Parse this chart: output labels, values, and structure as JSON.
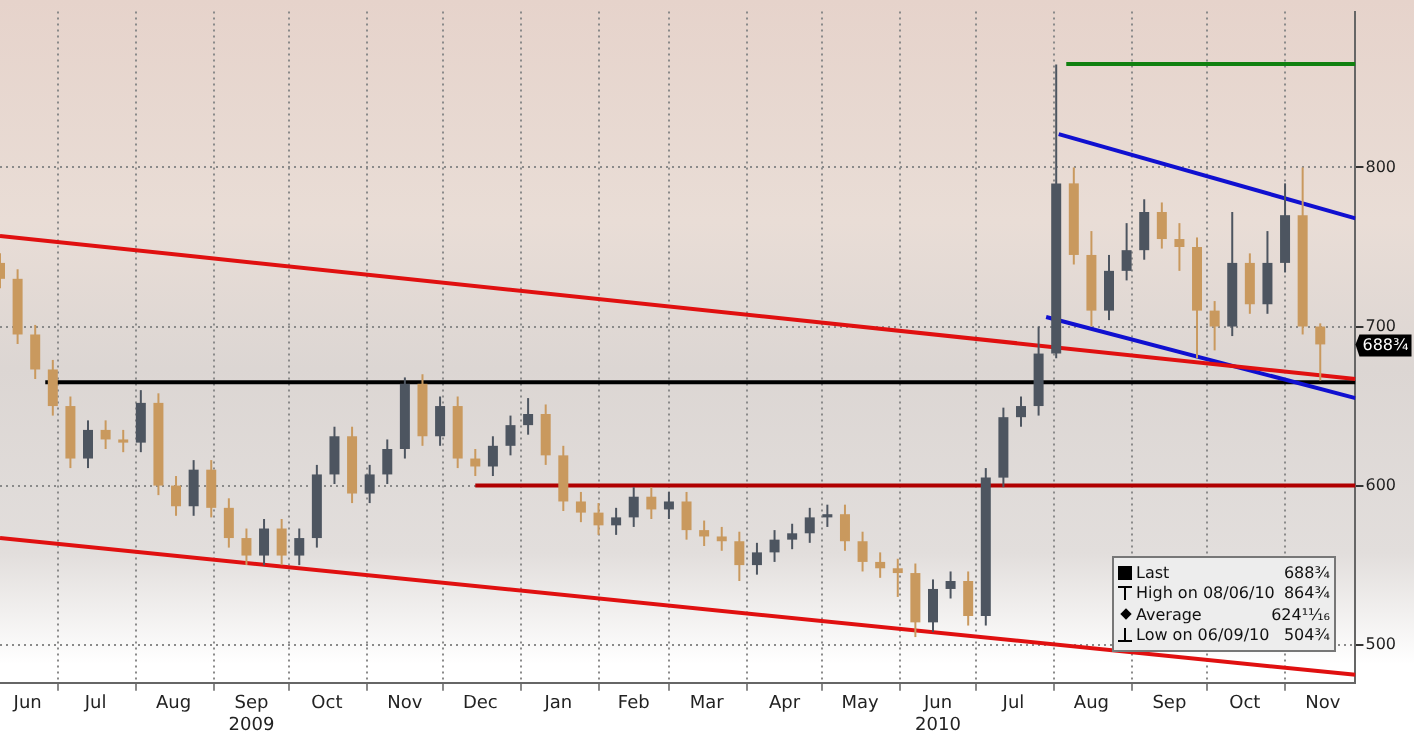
{
  "chart_data": {
    "type": "candlestick",
    "x": [
      "2009-06-08",
      "2009-06-15",
      "2009-06-22",
      "2009-06-29",
      "2009-07-06",
      "2009-07-13",
      "2009-07-20",
      "2009-07-27",
      "2009-08-03",
      "2009-08-10",
      "2009-08-17",
      "2009-08-24",
      "2009-08-31",
      "2009-09-07",
      "2009-09-14",
      "2009-09-21",
      "2009-09-28",
      "2009-10-05",
      "2009-10-12",
      "2009-10-19",
      "2009-10-26",
      "2009-11-02",
      "2009-11-09",
      "2009-11-16",
      "2009-11-23",
      "2009-11-30",
      "2009-12-07",
      "2009-12-14",
      "2009-12-21",
      "2009-12-28",
      "2010-01-04",
      "2010-01-11",
      "2010-01-18",
      "2010-01-25",
      "2010-02-01",
      "2010-02-08",
      "2010-02-15",
      "2010-02-22",
      "2010-03-01",
      "2010-03-08",
      "2010-03-15",
      "2010-03-22",
      "2010-03-29",
      "2010-04-05",
      "2010-04-12",
      "2010-04-19",
      "2010-04-26",
      "2010-05-03",
      "2010-05-10",
      "2010-05-17",
      "2010-05-24",
      "2010-05-31",
      "2010-06-07",
      "2010-06-14",
      "2010-06-21",
      "2010-06-28",
      "2010-07-05",
      "2010-07-12",
      "2010-07-19",
      "2010-07-26",
      "2010-08-02",
      "2010-08-09",
      "2010-08-16",
      "2010-08-23",
      "2010-08-30",
      "2010-09-06",
      "2010-09-13",
      "2010-09-20",
      "2010-09-27",
      "2010-10-04",
      "2010-10-11",
      "2010-10-18",
      "2010-10-25",
      "2010-11-01",
      "2010-11-08",
      "2010-11-15"
    ],
    "ohlc": [
      [
        740,
        746,
        724,
        730
      ],
      [
        730,
        736,
        689,
        695
      ],
      [
        695,
        701,
        667,
        673
      ],
      [
        673,
        679,
        644,
        650
      ],
      [
        650,
        656,
        611,
        617
      ],
      [
        617,
        641,
        611,
        635
      ],
      [
        635,
        641,
        623,
        629
      ],
      [
        629,
        635,
        621,
        627
      ],
      [
        627,
        660,
        621,
        652
      ],
      [
        652,
        658,
        594,
        600
      ],
      [
        600,
        606,
        581,
        587
      ],
      [
        587,
        616,
        581,
        610
      ],
      [
        610,
        616,
        580,
        586
      ],
      [
        586,
        592,
        561,
        567
      ],
      [
        567,
        573,
        550,
        556
      ],
      [
        556,
        579,
        550,
        573
      ],
      [
        573,
        579,
        550,
        556
      ],
      [
        556,
        573,
        550,
        567
      ],
      [
        567,
        613,
        561,
        607
      ],
      [
        607,
        637,
        601,
        631
      ],
      [
        631,
        637,
        589,
        595
      ],
      [
        595,
        613,
        589,
        607
      ],
      [
        607,
        629,
        601,
        623
      ],
      [
        623,
        668,
        617,
        664
      ],
      [
        664,
        670,
        625,
        631
      ],
      [
        631,
        656,
        625,
        650
      ],
      [
        650,
        656,
        611,
        617
      ],
      [
        617,
        623,
        606,
        612
      ],
      [
        612,
        631,
        606,
        625
      ],
      [
        625,
        644,
        619,
        638
      ],
      [
        638,
        655,
        632,
        645
      ],
      [
        645,
        651,
        613,
        619
      ],
      [
        619,
        625,
        584,
        590
      ],
      [
        590,
        596,
        577,
        583
      ],
      [
        583,
        589,
        569,
        575
      ],
      [
        575,
        586,
        569,
        580
      ],
      [
        580,
        599,
        574,
        593
      ],
      [
        593,
        599,
        579,
        585
      ],
      [
        585,
        596,
        579,
        590
      ],
      [
        590,
        596,
        566,
        572
      ],
      [
        572,
        578,
        562,
        568
      ],
      [
        568,
        574,
        559,
        565
      ],
      [
        565,
        571,
        540,
        550
      ],
      [
        550,
        564,
        544,
        558
      ],
      [
        558,
        572,
        552,
        566
      ],
      [
        566,
        576,
        560,
        570
      ],
      [
        570,
        586,
        564,
        580
      ],
      [
        580,
        588,
        574,
        582
      ],
      [
        582,
        588,
        559,
        565
      ],
      [
        565,
        571,
        546,
        552
      ],
      [
        552,
        558,
        542,
        548
      ],
      [
        548,
        554,
        530,
        545
      ],
      [
        545,
        551,
        504.75,
        514
      ],
      [
        514,
        541,
        508,
        535
      ],
      [
        535,
        546,
        529,
        540
      ],
      [
        540,
        546,
        512,
        518
      ],
      [
        518,
        611,
        512,
        605
      ],
      [
        605,
        649,
        599,
        643
      ],
      [
        643,
        656,
        637,
        650
      ],
      [
        650,
        700,
        644,
        683
      ],
      [
        683,
        864.75,
        680,
        790
      ],
      [
        790,
        800,
        739,
        745
      ],
      [
        745,
        760,
        700,
        710
      ],
      [
        710,
        745,
        704,
        735
      ],
      [
        735,
        765,
        729,
        748
      ],
      [
        748,
        780,
        742,
        772
      ],
      [
        772,
        778,
        749,
        755
      ],
      [
        755,
        765,
        735,
        750
      ],
      [
        750,
        756,
        680,
        710
      ],
      [
        710,
        716,
        685,
        700
      ],
      [
        700,
        772,
        694,
        740
      ],
      [
        740,
        746,
        708,
        714
      ],
      [
        714,
        760,
        708,
        740
      ],
      [
        740,
        790,
        734,
        770
      ],
      [
        770,
        800,
        695,
        700
      ],
      [
        700,
        702,
        666,
        688.75
      ]
    ],
    "colors": [
      "#c9995e",
      "#c9995e",
      "#c9995e",
      "#c9995e",
      "#c9995e",
      "#4d5560",
      "#c9995e",
      "#c9995e",
      "#4d5560",
      "#c9995e",
      "#c9995e",
      "#4d5560",
      "#c9995e",
      "#c9995e",
      "#c9995e",
      "#4d5560",
      "#c9995e",
      "#4d5560",
      "#4d5560",
      "#4d5560",
      "#c9995e",
      "#4d5560",
      "#4d5560",
      "#4d5560",
      "#c9995e",
      "#4d5560",
      "#c9995e",
      "#c9995e",
      "#4d5560",
      "#4d5560",
      "#4d5560",
      "#c9995e",
      "#c9995e",
      "#c9995e",
      "#c9995e",
      "#4d5560",
      "#4d5560",
      "#c9995e",
      "#4d5560",
      "#c9995e",
      "#c9995e",
      "#c9995e",
      "#c9995e",
      "#4d5560",
      "#4d5560",
      "#4d5560",
      "#4d5560",
      "#4d5560",
      "#c9995e",
      "#c9995e",
      "#c9995e",
      "#c9995e",
      "#c9995e",
      "#4d5560",
      "#4d5560",
      "#c9995e",
      "#4d5560",
      "#4d5560",
      "#4d5560",
      "#4d5560",
      "#4d5560",
      "#c9995e",
      "#c9995e",
      "#4d5560",
      "#4d5560",
      "#4d5560",
      "#c9995e",
      "#c9995e",
      "#c9995e",
      "#c9995e",
      "#4d5560",
      "#c9995e",
      "#4d5560",
      "#4d5560",
      "#c9995e",
      "#c9995e"
    ],
    "series": [
      {
        "type": "line",
        "color": "#e01010",
        "x": [
          "2009-06-08",
          "2010-11-29"
        ],
        "values": [
          757,
          667
        ]
      },
      {
        "type": "line",
        "color": "#e01010",
        "x": [
          "2009-06-08",
          "2010-11-29"
        ],
        "values": [
          567,
          481
        ]
      },
      {
        "type": "line",
        "color": "#1010d0",
        "x": [
          "2010-08-03",
          "2010-11-29"
        ],
        "values": [
          821,
          768
        ]
      },
      {
        "type": "line",
        "color": "#1010d0",
        "x": [
          "2010-07-29",
          "2010-11-29"
        ],
        "values": [
          706,
          655
        ]
      },
      {
        "type": "line",
        "color": "#108010",
        "x": [
          "2010-08-06",
          "2010-11-29"
        ],
        "values": [
          865,
          865
        ]
      },
      {
        "type": "line",
        "color": "#000000",
        "x": [
          "2009-06-26",
          "2010-11-29"
        ],
        "values": [
          665,
          665
        ]
      },
      {
        "type": "line",
        "color": "#b00000",
        "x": [
          "2009-12-14",
          "2010-11-29"
        ],
        "values": [
          600,
          600
        ]
      }
    ],
    "xlim": [
      "2009-06-08",
      "2010-11-29"
    ],
    "xticks": [
      {
        "value": "2009-06-19",
        "label": "Jun"
      },
      {
        "value": "2009-07-01",
        "label": null
      },
      {
        "value": "2009-07-16",
        "label": "Jul"
      },
      {
        "value": "2009-08-01",
        "label": null
      },
      {
        "value": "2009-08-16",
        "label": "Aug"
      },
      {
        "value": "2009-09-01",
        "label": null
      },
      {
        "value": "2009-09-16",
        "label": "Sep\n2009"
      },
      {
        "value": "2009-10-01",
        "label": null
      },
      {
        "value": "2009-10-16",
        "label": "Oct"
      },
      {
        "value": "2009-11-01",
        "label": null
      },
      {
        "value": "2009-11-16",
        "label": "Nov"
      },
      {
        "value": "2009-12-01",
        "label": null
      },
      {
        "value": "2009-12-16",
        "label": "Dec"
      },
      {
        "value": "2010-01-01",
        "label": null
      },
      {
        "value": "2010-01-16",
        "label": "Jan"
      },
      {
        "value": "2010-02-01",
        "label": null
      },
      {
        "value": "2010-02-15",
        "label": "Feb"
      },
      {
        "value": "2010-03-01",
        "label": null
      },
      {
        "value": "2010-03-16",
        "label": "Mar"
      },
      {
        "value": "2010-04-01",
        "label": null
      },
      {
        "value": "2010-04-16",
        "label": "Apr"
      },
      {
        "value": "2010-05-01",
        "label": null
      },
      {
        "value": "2010-05-16",
        "label": "May"
      },
      {
        "value": "2010-06-01",
        "label": null
      },
      {
        "value": "2010-06-16",
        "label": "Jun\n2010"
      },
      {
        "value": "2010-07-01",
        "label": null
      },
      {
        "value": "2010-07-16",
        "label": "Jul"
      },
      {
        "value": "2010-08-01",
        "label": null
      },
      {
        "value": "2010-08-16",
        "label": "Aug"
      },
      {
        "value": "2010-09-01",
        "label": null
      },
      {
        "value": "2010-09-16",
        "label": "Sep"
      },
      {
        "value": "2010-10-01",
        "label": null
      },
      {
        "value": "2010-10-16",
        "label": "Oct"
      },
      {
        "value": "2010-11-01",
        "label": null
      },
      {
        "value": "2010-11-16",
        "label": "Nov"
      }
    ],
    "ylim": [
      476,
      898
    ],
    "yticks": [
      500,
      600,
      700,
      800
    ],
    "grid": true,
    "annotations": [
      "688¾",
      "Last",
      "688¾",
      "High on 08/06/10",
      "864¾",
      "Average",
      "624¹¹⁄₁₆",
      "Low on 06/09/10",
      "504¾"
    ]
  }
}
